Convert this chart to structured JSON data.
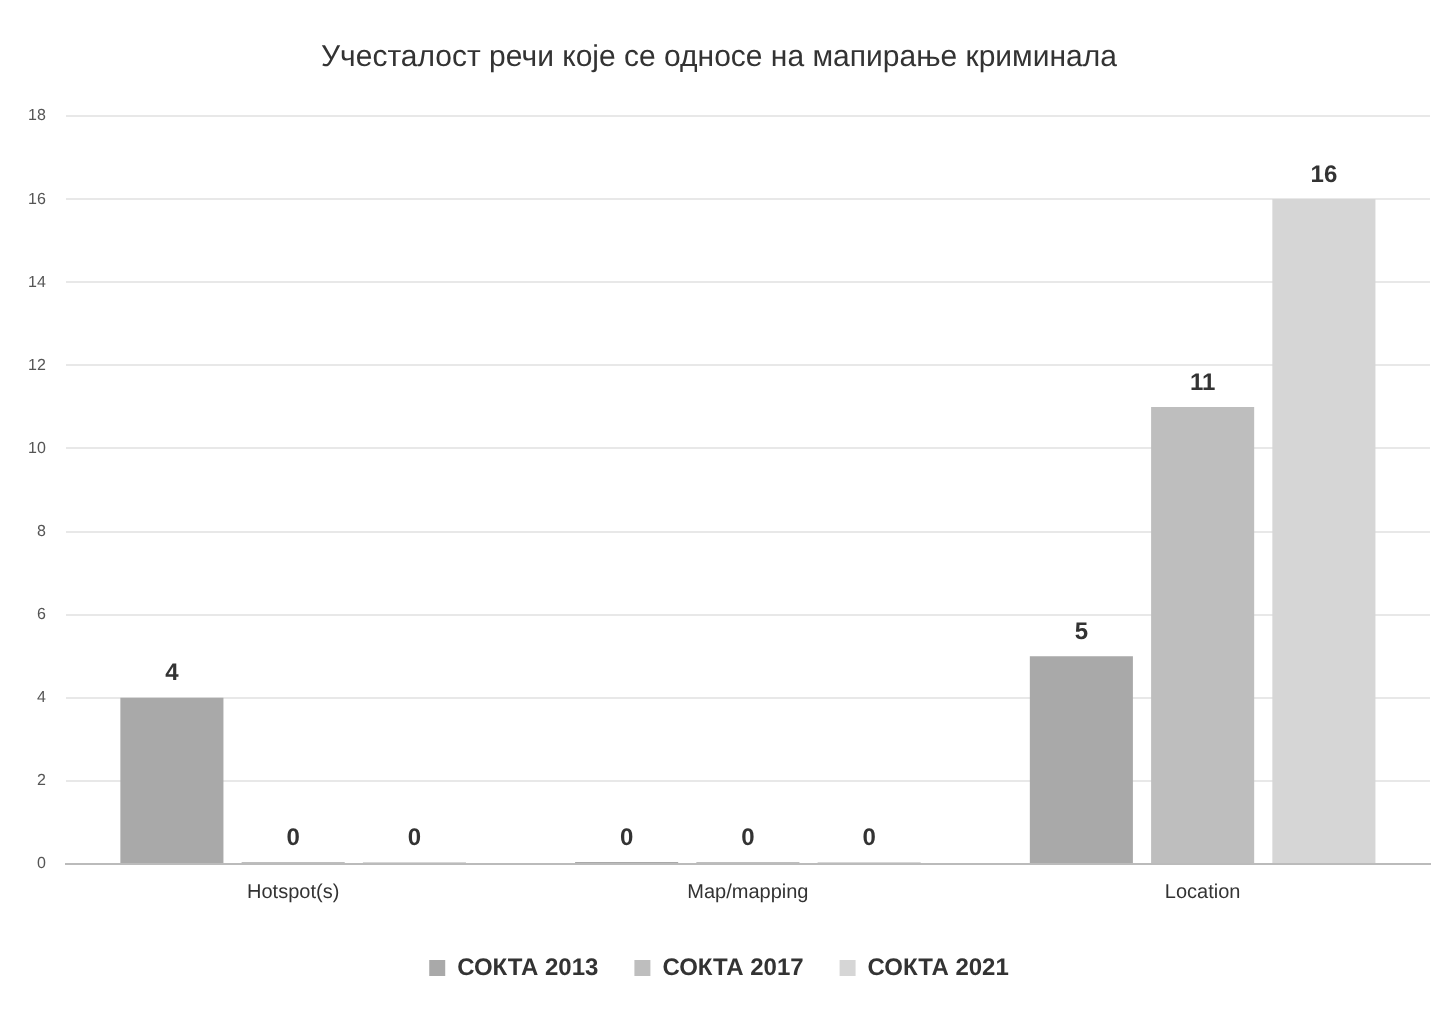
{
  "chart_data": {
    "type": "bar",
    "title": "Учесталост речи које се односе на мапирање криминала",
    "categories": [
      "Hotspot(s)",
      "Map/mapping",
      "Location"
    ],
    "series": [
      {
        "name": "СОКТА 2013",
        "color": "#a9a9a9",
        "values": [
          4,
          0,
          5
        ]
      },
      {
        "name": "СОКТА 2017",
        "color": "#bebebe",
        "values": [
          0,
          0,
          11
        ]
      },
      {
        "name": "СОКТА 2021",
        "color": "#d6d6d6",
        "values": [
          0,
          0,
          16
        ]
      }
    ],
    "ylim": [
      0,
      18
    ],
    "yticks": [
      0,
      2,
      4,
      6,
      8,
      10,
      12,
      14,
      16,
      18
    ],
    "grid": "y",
    "legend": "bottom",
    "data_labels": true
  }
}
